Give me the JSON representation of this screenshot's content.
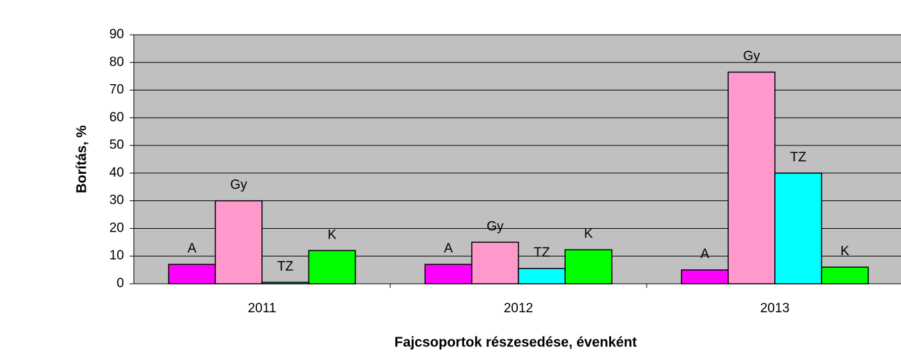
{
  "chart_data": {
    "type": "bar",
    "xlabel": "Fajcsoportok részesedése, évenként",
    "ylabel": "Borítás, %",
    "categories": [
      "2011",
      "2012",
      "2013"
    ],
    "series": [
      {
        "name": "A",
        "color": "#ff00ff",
        "values": [
          7,
          7,
          5
        ]
      },
      {
        "name": "Gy",
        "color": "#ff99cc",
        "values": [
          30,
          15,
          76.5
        ]
      },
      {
        "name": "TZ",
        "color": "#00ffff",
        "values": [
          0.5,
          5.5,
          40
        ]
      },
      {
        "name": "K",
        "color": "#00ff00",
        "values": [
          12,
          12.3,
          6
        ]
      }
    ],
    "ylim": [
      0,
      90
    ],
    "yticks": [
      0,
      10,
      20,
      30,
      40,
      50,
      60,
      70,
      80,
      90
    ],
    "grid": true,
    "plot_color": "#c0c0c0"
  }
}
